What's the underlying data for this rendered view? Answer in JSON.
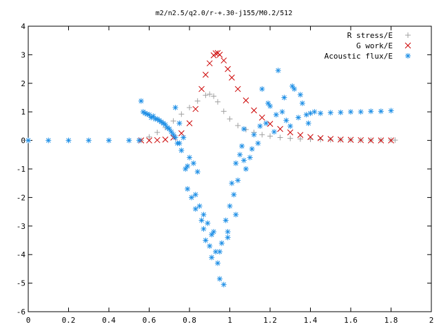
{
  "chart_data": {
    "type": "scatter",
    "title": "m2/n2.5/q2.0/r-+.30-j155/M0.2/512",
    "xlabel": "",
    "ylabel": "",
    "xlim": [
      0,
      2
    ],
    "ylim": [
      -6,
      4
    ],
    "xticks": [
      "0",
      "0.2",
      "0.4",
      "0.6",
      "0.8",
      "1",
      "1.2",
      "1.4",
      "1.6",
      "1.8",
      "2"
    ],
    "yticks": [
      "-6",
      "-5",
      "-4",
      "-3",
      "-2",
      "-1",
      "0",
      "1",
      "2",
      "3",
      "4"
    ],
    "grid": false,
    "legend_position": "top-right",
    "series": [
      {
        "name": "R stress/E",
        "marker": "+",
        "color": "#a0a0a0",
        "x": [
          0.56,
          0.6,
          0.64,
          0.68,
          0.72,
          0.76,
          0.8,
          0.84,
          0.88,
          0.9,
          0.92,
          0.94,
          0.97,
          1.0,
          1.04,
          1.08,
          1.12,
          1.16,
          1.2,
          1.25,
          1.3,
          1.35,
          1.4,
          1.45,
          1.5,
          1.55,
          1.6,
          1.65,
          1.7,
          1.75,
          1.8,
          1.82
        ],
        "y": [
          0.0,
          0.12,
          0.28,
          0.45,
          0.68,
          0.92,
          1.15,
          1.38,
          1.58,
          1.62,
          1.55,
          1.35,
          1.02,
          0.75,
          0.52,
          0.38,
          0.28,
          0.2,
          0.15,
          0.1,
          0.07,
          0.05,
          0.04,
          0.03,
          0.02,
          0.02,
          0.02,
          0.01,
          0.01,
          0.01,
          0.01,
          0.01
        ]
      },
      {
        "name": "G work/E",
        "marker": "x",
        "color": "#cc0000",
        "x": [
          0.56,
          0.6,
          0.64,
          0.68,
          0.72,
          0.76,
          0.8,
          0.83,
          0.86,
          0.88,
          0.9,
          0.92,
          0.93,
          0.94,
          0.95,
          0.97,
          0.99,
          1.01,
          1.04,
          1.08,
          1.12,
          1.16,
          1.2,
          1.25,
          1.3,
          1.35,
          1.4,
          1.45,
          1.5,
          1.55,
          1.6,
          1.65,
          1.7,
          1.75,
          1.8
        ],
        "y": [
          0.0,
          0.0,
          0.01,
          0.03,
          0.1,
          0.25,
          0.6,
          1.1,
          1.8,
          2.3,
          2.7,
          2.98,
          3.05,
          3.06,
          3.0,
          2.8,
          2.5,
          2.2,
          1.8,
          1.4,
          1.05,
          0.8,
          0.58,
          0.4,
          0.28,
          0.19,
          0.12,
          0.08,
          0.05,
          0.03,
          0.02,
          0.01,
          0.0,
          0.0,
          0.0
        ]
      },
      {
        "name": "Acoustic flux/E",
        "marker": "*",
        "color": "#1e8fe6",
        "x": [
          0.0,
          0.1,
          0.2,
          0.3,
          0.4,
          0.5,
          0.55,
          0.56,
          0.58,
          0.6,
          0.62,
          0.64,
          0.66,
          0.68,
          0.7,
          0.72,
          0.73,
          0.74,
          0.75,
          0.76,
          0.77,
          0.78,
          0.79,
          0.8,
          0.81,
          0.82,
          0.83,
          0.84,
          0.85,
          0.86,
          0.87,
          0.88,
          0.89,
          0.9,
          0.91,
          0.92,
          0.93,
          0.94,
          0.95,
          0.96,
          0.97,
          0.98,
          0.99,
          1.0,
          1.01,
          1.02,
          1.03,
          1.04,
          1.05,
          1.06,
          1.07,
          1.08,
          1.1,
          1.12,
          1.14,
          1.16,
          1.18,
          1.2,
          1.22,
          1.24,
          1.26,
          1.28,
          1.3,
          1.32,
          1.34,
          1.36,
          1.38,
          1.4,
          1.42,
          1.45,
          1.5,
          1.55,
          1.6,
          1.65,
          1.7,
          1.75,
          1.8,
          0.57,
          0.59,
          0.61,
          0.63,
          0.65,
          0.67,
          0.69,
          0.71,
          0.73,
          0.75,
          0.79,
          0.83,
          0.87,
          0.91,
          0.95,
          0.99,
          1.03,
          1.07,
          1.11,
          1.15,
          1.19,
          1.23,
          1.27,
          1.31,
          1.35,
          1.39
        ],
        "y": [
          0.0,
          0.0,
          0.0,
          0.0,
          0.0,
          0.0,
          0.0,
          1.38,
          0.95,
          0.9,
          0.85,
          0.75,
          0.65,
          0.55,
          0.4,
          0.2,
          1.15,
          -0.1,
          0.6,
          -0.35,
          0.1,
          -1.0,
          -1.7,
          -0.6,
          -2.0,
          -0.8,
          -2.4,
          -1.1,
          -2.3,
          -2.8,
          -3.1,
          -3.5,
          -2.9,
          -3.7,
          -4.1,
          -3.2,
          -3.9,
          -4.3,
          -4.85,
          -3.6,
          -5.05,
          -2.8,
          -3.2,
          -2.3,
          -1.5,
          -1.9,
          -0.8,
          -1.4,
          -0.5,
          -0.2,
          0.4,
          -1.0,
          -0.6,
          0.2,
          -0.1,
          1.8,
          0.6,
          1.2,
          0.3,
          2.45,
          1.0,
          0.7,
          0.5,
          1.8,
          0.8,
          1.3,
          0.9,
          0.95,
          1.0,
          0.95,
          0.97,
          0.98,
          1.0,
          1.0,
          1.02,
          1.02,
          1.04,
          1.0,
          0.92,
          0.8,
          0.75,
          0.7,
          0.6,
          0.45,
          0.3,
          0.1,
          -0.1,
          -0.9,
          -1.9,
          -2.6,
          -3.3,
          -3.9,
          -3.4,
          -2.6,
          -0.7,
          -0.3,
          0.5,
          1.3,
          0.9,
          1.5,
          1.9,
          1.6,
          0.6
        ]
      }
    ]
  }
}
